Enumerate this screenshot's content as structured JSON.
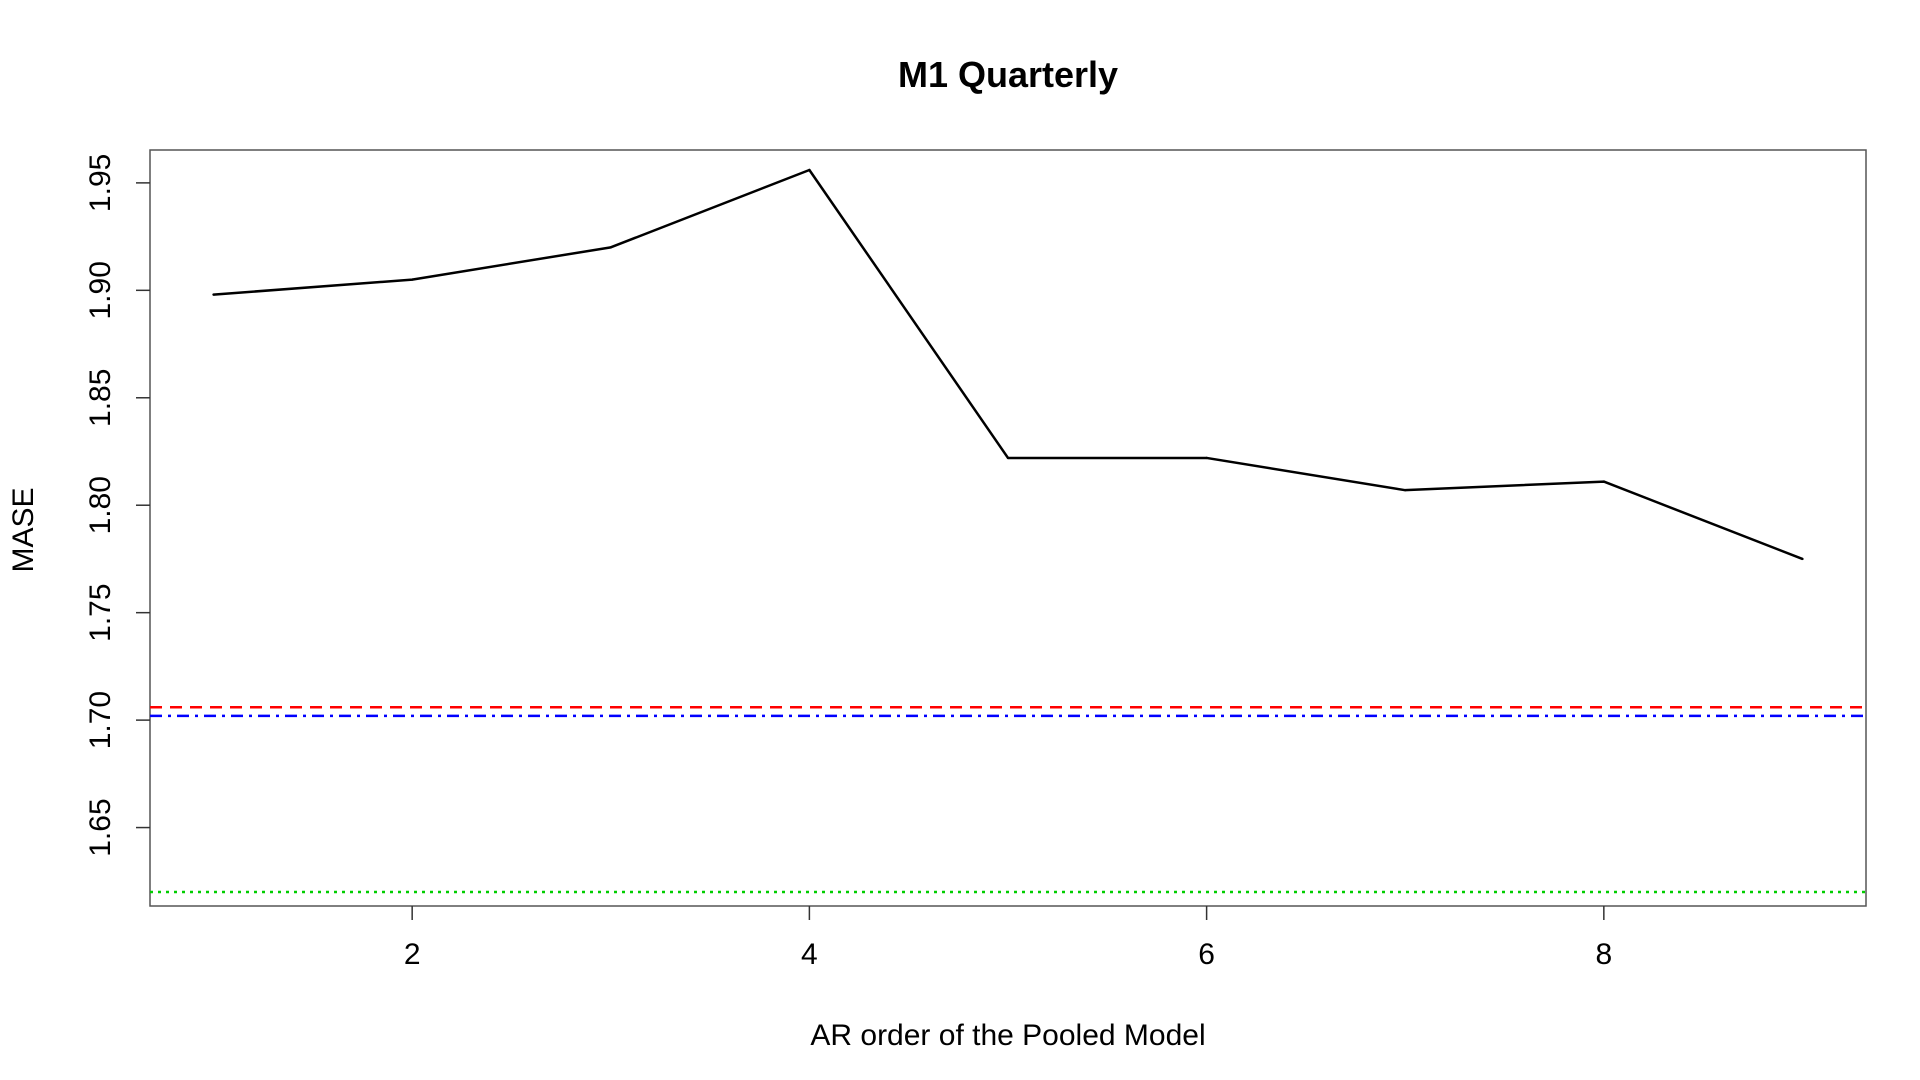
{
  "chart_data": {
    "type": "line",
    "title": "M1 Quarterly",
    "xlabel": "AR order of the Pooled Model",
    "ylabel": "MASE",
    "xlim": [
      0.68,
      9.32
    ],
    "ylim": [
      1.6135,
      1.9653
    ],
    "x_ticks": [
      "2",
      "4",
      "6",
      "8"
    ],
    "y_ticks": [
      "1.65",
      "1.70",
      "1.75",
      "1.80",
      "1.85",
      "1.90",
      "1.95"
    ],
    "grid": false,
    "legend": "none",
    "series": [
      {
        "x": [
          1,
          2,
          3,
          4,
          5,
          6,
          7,
          8,
          9
        ],
        "values": [
          1.898,
          1.905,
          1.92,
          1.956,
          1.822,
          1.822,
          1.807,
          1.811,
          1.775
        ],
        "color": "#000000",
        "style": "solid"
      }
    ],
    "reference_lines": [
      {
        "y": 1.706,
        "color": "#ff0000",
        "style": "dashed"
      },
      {
        "y": 1.702,
        "color": "#0000ff",
        "style": "dashdot"
      },
      {
        "y": 1.62,
        "color": "#00cd00",
        "style": "dotted"
      }
    ]
  }
}
